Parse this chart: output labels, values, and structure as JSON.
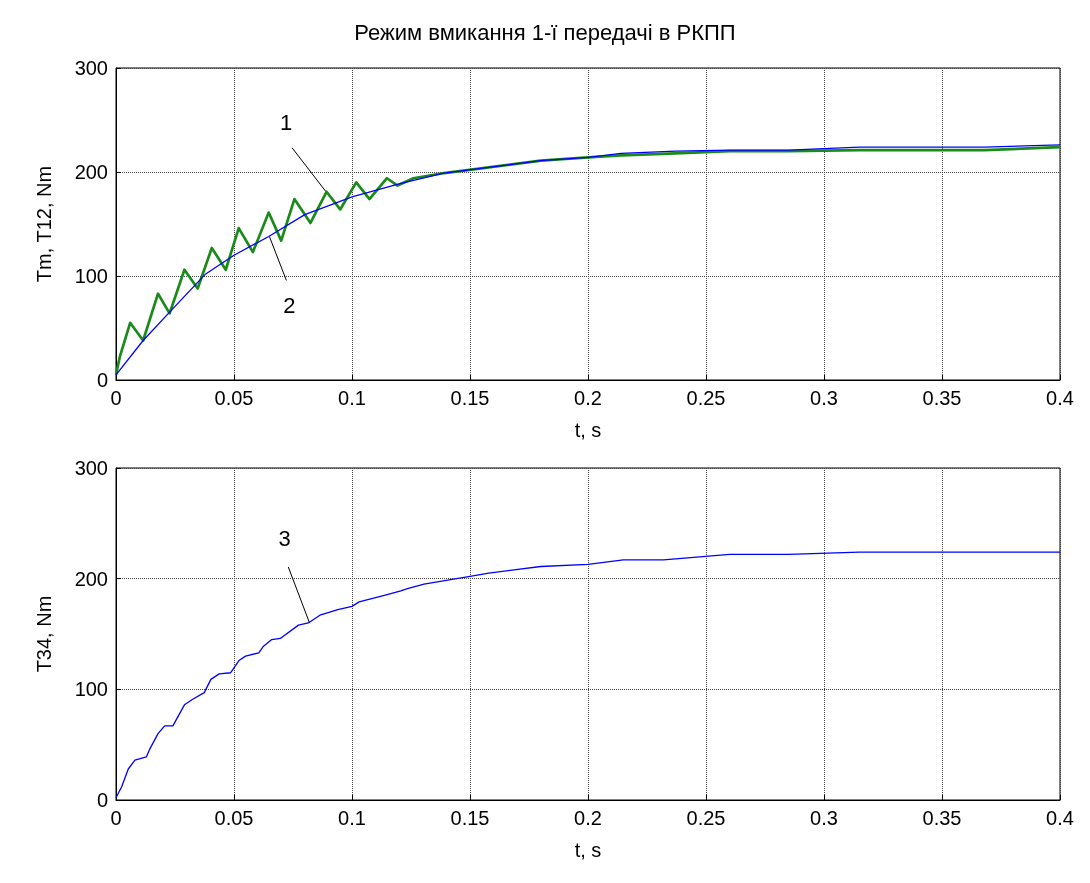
{
  "chart_data": [
    {
      "type": "line",
      "title": "Режим вмикання 1-ї передачі в РКПП",
      "xlabel": "t, s",
      "ylabel": "Tm, T12, Nm",
      "xlim": [
        0,
        0.4
      ],
      "ylim": [
        0,
        300
      ],
      "xticks": [
        0,
        0.05,
        0.1,
        0.15,
        0.2,
        0.25,
        0.3,
        0.35,
        0.4
      ],
      "yticks": [
        0,
        100,
        200,
        300
      ],
      "grid": true,
      "marker": "none",
      "line_style": "solid",
      "series": [
        {
          "color": "#1a8a1a",
          "x": [
            0,
            0.0017,
            0.006,
            0.0115,
            0.0178,
            0.0227,
            0.029,
            0.0346,
            0.0406,
            0.0465,
            0.052,
            0.058,
            0.0647,
            0.07,
            0.0756,
            0.0824,
            0.0892,
            0.095,
            0.1018,
            0.1074,
            0.1148,
            0.1193,
            0.126,
            0.139,
            0.153,
            0.18,
            0.2,
            0.214,
            0.237,
            0.26,
            0.285,
            0.315,
            0.368,
            0.4
          ],
          "values": [
            5,
            23,
            55,
            38,
            83,
            64,
            106,
            88,
            127,
            106,
            146,
            123,
            161,
            134,
            174,
            151,
            181,
            164,
            190,
            174,
            194,
            187,
            194,
            199,
            203,
            211,
            214,
            216,
            218,
            220,
            220,
            221,
            221,
            224
          ]
        },
        {
          "color": "#0000ff",
          "x": [
            0,
            0.0115,
            0.0234,
            0.038,
            0.05,
            0.0647,
            0.08,
            0.1,
            0.1207,
            0.139,
            0.153,
            0.18,
            0.2,
            0.214,
            0.237,
            0.26,
            0.285,
            0.315,
            0.368,
            0.4
          ],
          "values": [
            5,
            38,
            67,
            102,
            120,
            138,
            159,
            176,
            189,
            199,
            203,
            211,
            214,
            218,
            220,
            221,
            221,
            224,
            224,
            226
          ]
        }
      ],
      "annotations": [
        {
          "text": "1",
          "x": 0.089,
          "y": 181
        },
        {
          "text": "2",
          "x": 0.065,
          "y": 138
        }
      ]
    },
    {
      "type": "line",
      "xlabel": "t, s",
      "ylabel": "T34, Nm",
      "xlim": [
        0,
        0.4
      ],
      "ylim": [
        0,
        300
      ],
      "xticks": [
        0,
        0.05,
        0.1,
        0.15,
        0.2,
        0.25,
        0.3,
        0.35,
        0.4
      ],
      "yticks": [
        0,
        100,
        200,
        300
      ],
      "grid": true,
      "marker": "none",
      "line_style": "solid",
      "series": [
        {
          "color": "#0000ff",
          "x": [
            0,
            0.0024,
            0.0052,
            0.008,
            0.0129,
            0.0143,
            0.0178,
            0.0206,
            0.0241,
            0.029,
            0.0325,
            0.0374,
            0.0402,
            0.0437,
            0.0486,
            0.0521,
            0.0549,
            0.0605,
            0.0625,
            0.066,
            0.0696,
            0.0773,
            0.0815,
            0.0864,
            0.094,
            0.1,
            0.103,
            0.1137,
            0.1207,
            0.1235,
            0.1305,
            0.15,
            0.158,
            0.18,
            0.2,
            0.215,
            0.232,
            0.26,
            0.285,
            0.315,
            0.4
          ],
          "values": [
            2,
            12,
            28,
            36,
            39,
            46,
            60,
            67,
            67,
            86,
            91,
            97,
            109,
            114,
            115,
            126,
            130,
            133,
            139,
            145,
            146,
            158,
            160,
            167,
            172,
            175,
            179,
            185,
            189,
            191,
            195,
            202,
            205,
            211,
            213,
            217,
            217,
            222,
            222,
            224,
            224
          ]
        }
      ],
      "annotations": [
        {
          "text": "3",
          "x": 0.082,
          "y": 160
        }
      ]
    }
  ]
}
